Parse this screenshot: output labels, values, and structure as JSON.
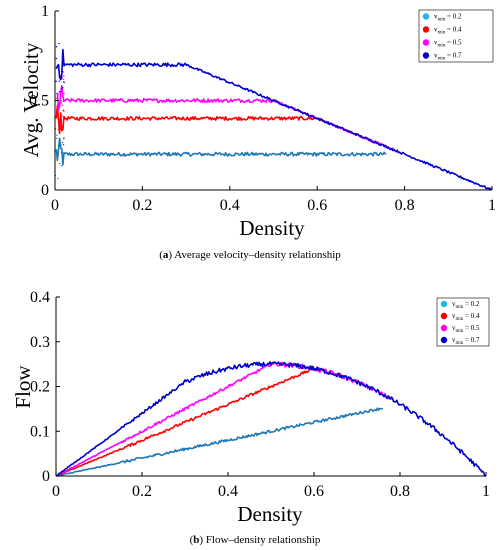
{
  "chart_data": [
    {
      "type": "scatter",
      "caption_letter": "a",
      "caption_text": "Average velocity–density relationship",
      "xlabel": "Density",
      "ylabel": "Avg. Velocity",
      "xlim": [
        0,
        1
      ],
      "ylim": [
        0,
        1
      ],
      "xticks": [
        0,
        0.2,
        0.4,
        0.6,
        0.8,
        1
      ],
      "xtick_labels": [
        "0",
        "0.2",
        "0.4",
        "0.6",
        "0.8",
        "1"
      ],
      "yticks": [
        0,
        0.5,
        1
      ],
      "ytick_labels": [
        "0",
        "0.5",
        "1"
      ],
      "legend": "top-right",
      "series": [
        {
          "name_main": "v",
          "name_sub": "min",
          "name_rest": " = 0.2",
          "color": "#1f77b4",
          "legend_color": "#22b5e8",
          "vmin": 0.2,
          "max_density": 0.76
        },
        {
          "name_main": "v",
          "name_sub": "min",
          "name_rest": " = 0.4",
          "color": "#ff0000",
          "legend_color": "#ff0000",
          "vmin": 0.4,
          "max_density": 0.62
        },
        {
          "name_main": "v",
          "name_sub": "min",
          "name_rest": " = 0.5",
          "color": "#ff00ff",
          "legend_color": "#ff00ff",
          "vmin": 0.5,
          "max_density": 0.78
        },
        {
          "name_main": "v",
          "name_sub": "min",
          "name_rest": " = 0.7",
          "color": "#0000cc",
          "legend_color": "#0000cc",
          "vmin": 0.7,
          "max_density": 1.0
        }
      ]
    },
    {
      "type": "scatter",
      "caption_letter": "b",
      "caption_text": "Flow–density relationship",
      "xlabel": "Density",
      "ylabel": "Flow",
      "xlim": [
        0,
        1
      ],
      "ylim": [
        0,
        0.4
      ],
      "xticks": [
        0,
        0.2,
        0.4,
        0.6,
        0.8,
        1
      ],
      "xtick_labels": [
        "0",
        "0.2",
        "0.4",
        "0.6",
        "0.8",
        "1"
      ],
      "yticks": [
        0,
        0.1,
        0.2,
        0.3,
        0.4
      ],
      "ytick_labels": [
        "0",
        "0.1",
        "0.2",
        "0.3",
        "0.4"
      ],
      "legend": "top-right",
      "series": [
        {
          "name_main": "v",
          "name_sub": "min",
          "name_rest": " = 0.2",
          "color": "#1f77b4",
          "legend_color": "#22b5e8",
          "vmin": 0.2,
          "max_density": 0.76
        },
        {
          "name_main": "v",
          "name_sub": "min",
          "name_rest": " = 0.4",
          "color": "#ff0000",
          "legend_color": "#ff0000",
          "vmin": 0.4,
          "max_density": 0.62
        },
        {
          "name_main": "v",
          "name_sub": "min",
          "name_rest": " = 0.5",
          "color": "#ff00ff",
          "legend_color": "#ff00ff",
          "vmin": 0.5,
          "max_density": 0.78
        },
        {
          "name_main": "v",
          "name_sub": "min",
          "name_rest": " = 0.7",
          "color": "#0000cc",
          "legend_color": "#0000cc",
          "vmin": 0.7,
          "max_density": 1.0
        }
      ]
    }
  ]
}
